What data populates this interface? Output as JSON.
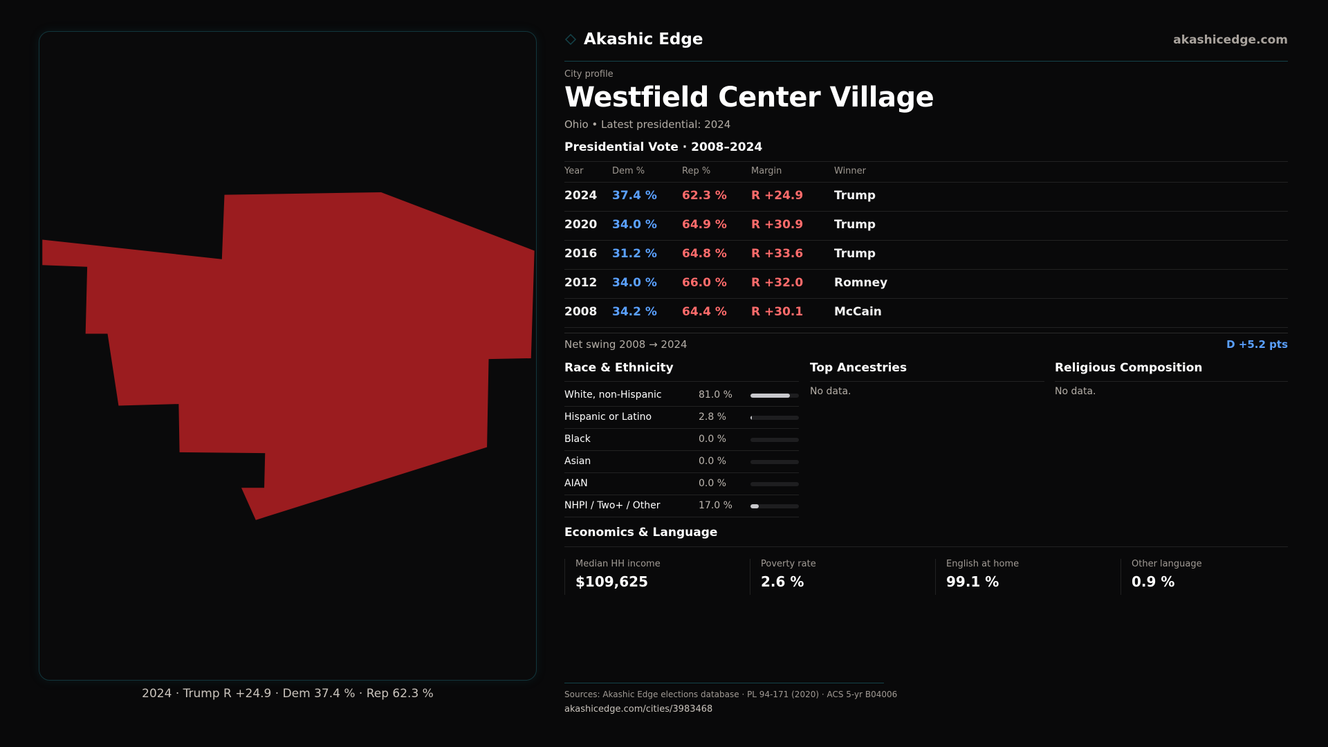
{
  "brand": {
    "name": "Akashic Edge",
    "site": "akashicedge.com",
    "icon": "diamond-icon",
    "accent": "#14434a"
  },
  "profile": {
    "eyebrow": "City profile",
    "title": "Westfield Center Village",
    "subtitle": "Ohio • Latest presidential: 2024"
  },
  "map": {
    "caption": "2024 · Trump R +24.9 · Dem 37.4 % · Rep 62.3 %",
    "fill": "#9b1c1f"
  },
  "presidential": {
    "title": "Presidential Vote · 2008–2024",
    "headers": [
      "Year",
      "Dem %",
      "Rep %",
      "Margin",
      "Winner"
    ],
    "rows": [
      {
        "year": "2024",
        "dem": "37.4 %",
        "rep": "62.3 %",
        "margin": "R +24.9",
        "winner": "Trump"
      },
      {
        "year": "2020",
        "dem": "34.0 %",
        "rep": "64.9 %",
        "margin": "R +30.9",
        "winner": "Trump"
      },
      {
        "year": "2016",
        "dem": "31.2 %",
        "rep": "64.8 %",
        "margin": "R +33.6",
        "winner": "Trump"
      },
      {
        "year": "2012",
        "dem": "34.0 %",
        "rep": "66.0 %",
        "margin": "R +32.0",
        "winner": "Romney"
      },
      {
        "year": "2008",
        "dem": "34.2 %",
        "rep": "64.4 %",
        "margin": "R +30.1",
        "winner": "McCain"
      }
    ],
    "swing_label": "Net swing 2008 → 2024",
    "swing_value": "D +5.2 pts",
    "dem_color": "#5aa0ff",
    "rep_color": "#ff6b6b"
  },
  "race": {
    "title": "Race & Ethnicity",
    "rows": [
      {
        "label": "White, non-Hispanic",
        "value": "81.0 %",
        "pct": 81.0
      },
      {
        "label": "Hispanic or Latino",
        "value": "2.8 %",
        "pct": 2.8
      },
      {
        "label": "Black",
        "value": "0.0 %",
        "pct": 0
      },
      {
        "label": "Asian",
        "value": "0.0 %",
        "pct": 0
      },
      {
        "label": "AIAN",
        "value": "0.0 %",
        "pct": 0
      },
      {
        "label": "NHPI / Two+ / Other",
        "value": "17.0 %",
        "pct": 17.0
      }
    ]
  },
  "ancestries": {
    "title": "Top Ancestries",
    "empty": "No data."
  },
  "religion": {
    "title": "Religious Composition",
    "empty": "No data."
  },
  "economics": {
    "title": "Economics & Language",
    "cards": [
      {
        "label": "Median HH income",
        "value": "$109,625"
      },
      {
        "label": "Poverty rate",
        "value": "2.6 %"
      },
      {
        "label": "English at home",
        "value": "99.1 %"
      },
      {
        "label": "Other language",
        "value": "0.9 %"
      }
    ]
  },
  "footer": {
    "sources": "Sources: Akashic Edge elections database · PL 94-171 (2020) · ACS 5-yr B04006",
    "url": "akashicedge.com/cities/3983468"
  }
}
